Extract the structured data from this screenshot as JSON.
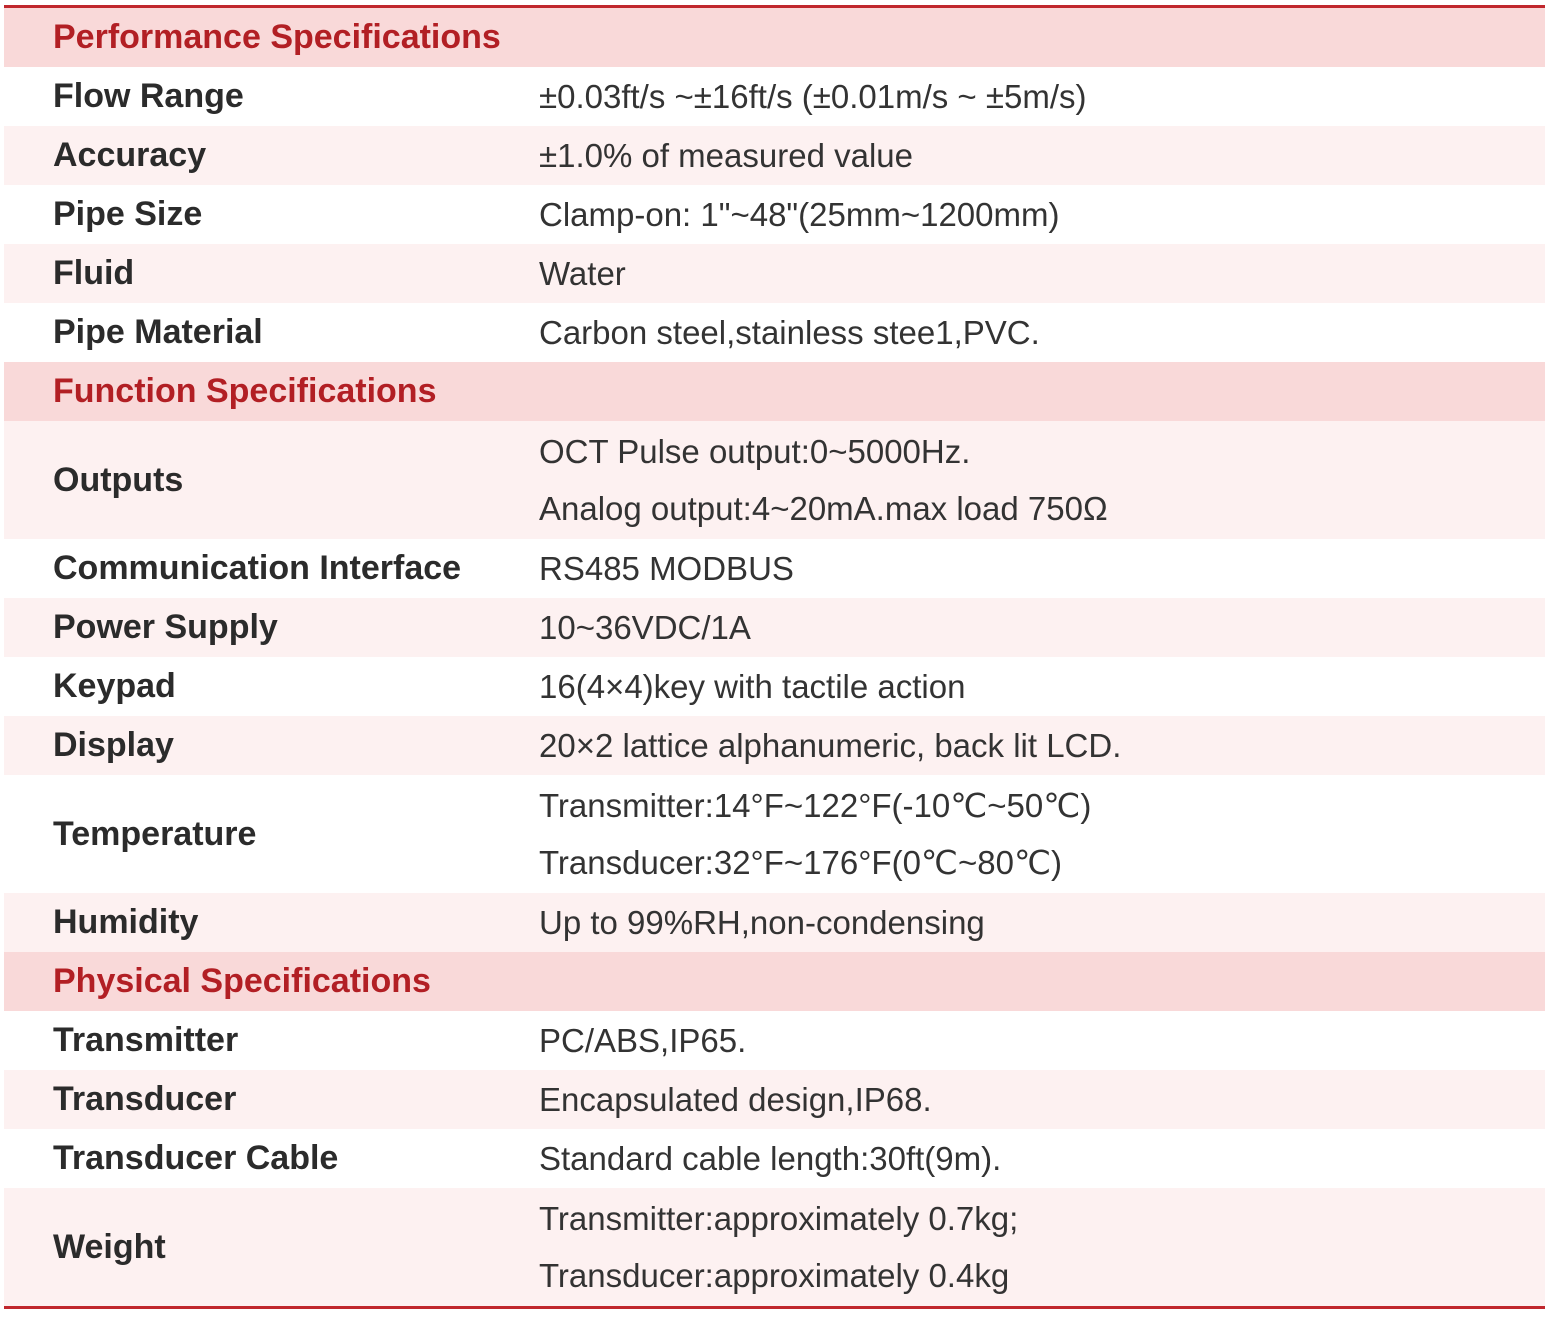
{
  "accent_color": "#c0272d",
  "sections": [
    {
      "title": "Performance Specifications",
      "rows": [
        {
          "label": "Flow Range",
          "values": [
            "±0.03ft/s ~±16ft/s (±0.01m/s ~ ±5m/s)"
          ]
        },
        {
          "label": "Accuracy",
          "values": [
            "±1.0% of measured value"
          ]
        },
        {
          "label": "Pipe Size",
          "values": [
            "Clamp-on: 1\"~48\"(25mm~1200mm)"
          ]
        },
        {
          "label": "Fluid",
          "values": [
            "Water"
          ]
        },
        {
          "label": "Pipe Material",
          "values": [
            "Carbon steel,stainless stee1,PVC."
          ]
        }
      ]
    },
    {
      "title": "Function Specifications",
      "rows": [
        {
          "label": "Outputs",
          "values": [
            "OCT Pulse output:0~5000Hz.",
            "Analog output:4~20mA.max load 750Ω"
          ]
        },
        {
          "label": "Communication Interface",
          "values": [
            "RS485 MODBUS"
          ]
        },
        {
          "label": "Power Supply",
          "values": [
            "10~36VDC/1A"
          ]
        },
        {
          "label": "Keypad",
          "values": [
            "16(4×4)key with tactile action"
          ]
        },
        {
          "label": "Display",
          "values": [
            "20×2 lattice alphanumeric, back lit LCD."
          ]
        },
        {
          "label": "Temperature",
          "values": [
            "Transmitter:14°F~122°F(-10℃~50℃)",
            "Transducer:32°F~176°F(0℃~80℃)"
          ]
        },
        {
          "label": "Humidity",
          "values": [
            "Up to 99%RH,non-condensing"
          ]
        }
      ]
    },
    {
      "title": "Physical Specifications",
      "rows": [
        {
          "label": "Transmitter",
          "values": [
            "PC/ABS,IP65."
          ]
        },
        {
          "label": "Transducer",
          "values": [
            "Encapsulated design,IP68."
          ]
        },
        {
          "label": "Transducer Cable",
          "values": [
            "Standard cable length:30ft(9m)."
          ]
        },
        {
          "label": "Weight",
          "values": [
            "Transmitter:approximately 0.7kg;",
            "Transducer:approximately 0.4kg"
          ]
        }
      ]
    }
  ]
}
